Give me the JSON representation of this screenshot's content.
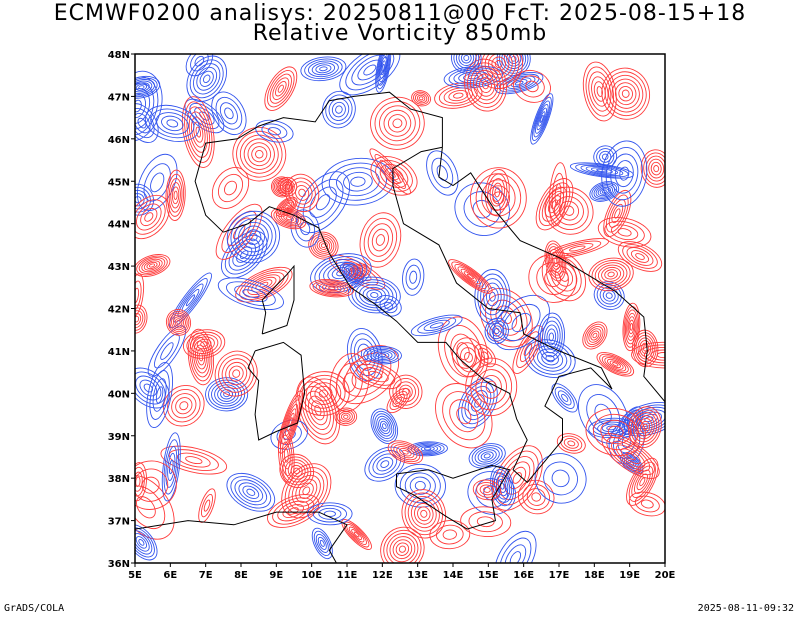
{
  "title_line1": "ECMWF0200 analisys: 20250811@00 FcT: 2025-08-15+18",
  "title_line2": "Relative Vorticity 850mb",
  "footer_left": "GrADS/COLA",
  "footer_right": "2025-08-11-09:32",
  "map": {
    "lon_range": [
      5,
      20
    ],
    "lat_range": [
      36,
      48
    ],
    "lon_ticks": [
      "5E",
      "6E",
      "7E",
      "8E",
      "9E",
      "10E",
      "11E",
      "12E",
      "13E",
      "14E",
      "15E",
      "16E",
      "17E",
      "18E",
      "19E",
      "20E"
    ],
    "lat_ticks": [
      "36N",
      "37N",
      "38N",
      "39N",
      "40N",
      "41N",
      "42N",
      "43N",
      "44N",
      "45N",
      "46N",
      "47N",
      "48N"
    ],
    "positive_color": "#ff3b3b",
    "negative_color": "#3355ee",
    "coast_color": "#000000"
  }
}
